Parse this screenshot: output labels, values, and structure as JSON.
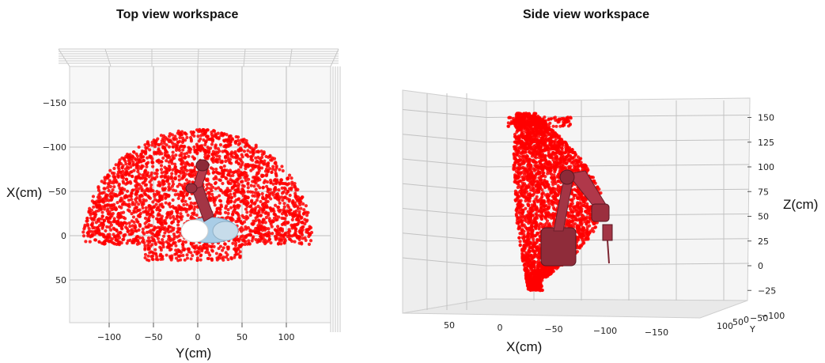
{
  "chart_data": [
    {
      "type": "scatter",
      "title": "Top view workspace",
      "xlabel": "Y(cm)",
      "ylabel": "X(cm)",
      "x_ticks": [
        "−100",
        "−50",
        "0",
        "50",
        "100"
      ],
      "y_ticks": [
        "−150",
        "−100",
        "−50",
        "0",
        "50"
      ],
      "xlim": [
        -145,
        155
      ],
      "ylim": [
        -185,
        100
      ],
      "grid": true,
      "point_color": "#ff0000",
      "robot_color": "#b5323f",
      "base_color": "#a9cde6",
      "workspace": {
        "shape": "half-disc",
        "center_y": 0,
        "center_x": 10,
        "radius_cm": 130
      },
      "series": [
        {
          "x": [
            -130,
            -100,
            -50,
            0,
            50,
            100,
            130
          ],
          "y": [
            10,
            -70,
            -110,
            -125,
            -110,
            -70,
            10
          ]
        }
      ]
    },
    {
      "type": "scatter",
      "title": "Side view workspace",
      "xlabel": "X(cm)",
      "ylabel": "Z(cm)",
      "zlabel": "Y",
      "x_ticks": [
        "50",
        "0",
        "−50",
        "−100",
        "−150"
      ],
      "z_ticks": [
        "150",
        "125",
        "100",
        "75",
        "50",
        "25",
        "0",
        "−25"
      ],
      "y_ticks": [
        "100",
        "50",
        "0",
        "−50",
        "−100"
      ],
      "zlim": [
        -40,
        165
      ],
      "grid": true,
      "point_color": "#ff0000",
      "robot_color": "#b5323f",
      "series": [
        {
          "x": [
            10,
            -20,
            -60,
            -110,
            -160
          ],
          "z": [
            150,
            140,
            100,
            50,
            -10
          ]
        }
      ]
    }
  ]
}
